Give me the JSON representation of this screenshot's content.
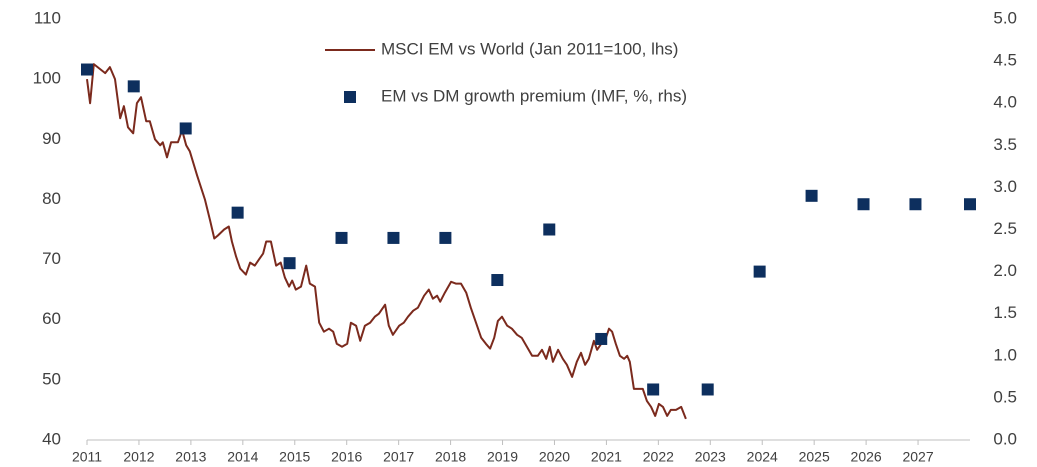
{
  "chart_data": {
    "type": "combo",
    "xlim": [
      2011,
      2028
    ],
    "xticks": [
      2011,
      2012,
      2013,
      2014,
      2015,
      2016,
      2017,
      2018,
      2019,
      2020,
      2021,
      2022,
      2023,
      2024,
      2025,
      2026,
      2027
    ],
    "ylim": [
      40,
      110
    ],
    "yticks": [
      40,
      50,
      60,
      70,
      80,
      90,
      100,
      110
    ],
    "y2lim": [
      0,
      5
    ],
    "y2ticks": [
      {
        "value": 0,
        "label": "0.0"
      },
      0.5,
      {
        "value": 1,
        "label": "1.0"
      },
      1.5,
      {
        "value": 2,
        "label": "2.0"
      },
      2.5,
      {
        "value": 3,
        "label": "3.0"
      },
      3.5,
      {
        "value": 4,
        "label": "4.0"
      },
      4.5,
      {
        "value": 5,
        "label": "5.0"
      }
    ],
    "series": [
      {
        "name": "MSCI EM vs World (Jan 2011=100, lhs)",
        "type": "line",
        "color": "#7b2a1d",
        "x": [
          2011.0,
          2011.06,
          2011.13,
          2011.35,
          2011.44,
          2011.54,
          2011.64,
          2011.71,
          2011.79,
          2011.89,
          2011.96,
          2012.04,
          2012.14,
          2012.21,
          2012.31,
          2012.41,
          2012.46,
          2012.54,
          2012.62,
          2012.75,
          2012.83,
          2012.91,
          2012.98,
          2013.12,
          2013.27,
          2013.37,
          2013.45,
          2013.52,
          2013.64,
          2013.73,
          2013.79,
          2013.87,
          2013.95,
          2014.06,
          2014.14,
          2014.23,
          2014.31,
          2014.39,
          2014.45,
          2014.54,
          2014.64,
          2014.73,
          2014.81,
          2014.89,
          2014.95,
          2015.02,
          2015.12,
          2015.22,
          2015.29,
          2015.39,
          2015.47,
          2015.56,
          2015.66,
          2015.74,
          2015.81,
          2015.91,
          2016.01,
          2016.08,
          2016.18,
          2016.26,
          2016.35,
          2016.45,
          2016.54,
          2016.62,
          2016.74,
          2016.81,
          2016.89,
          2017.01,
          2017.1,
          2017.18,
          2017.28,
          2017.37,
          2017.49,
          2017.58,
          2017.66,
          2017.74,
          2017.8,
          2017.89,
          2018.01,
          2018.1,
          2018.2,
          2018.3,
          2018.39,
          2018.49,
          2018.59,
          2018.68,
          2018.76,
          2018.84,
          2018.91,
          2018.99,
          2019.09,
          2019.18,
          2019.28,
          2019.37,
          2019.47,
          2019.57,
          2019.68,
          2019.76,
          2019.84,
          2019.91,
          2019.97,
          2020.07,
          2020.16,
          2020.24,
          2020.34,
          2020.43,
          2020.51,
          2020.59,
          2020.66,
          2020.76,
          2020.82,
          2020.9,
          2020.97,
          2021.05,
          2021.11,
          2021.18,
          2021.26,
          2021.34,
          2021.4,
          2021.45,
          2021.53,
          2021.61,
          2021.7,
          2021.78,
          2021.86,
          2021.94,
          2022.01,
          2022.09,
          2022.17,
          2022.24,
          2022.34,
          2022.44,
          2022.53
        ],
        "values": [
          100,
          96,
          102.5,
          101,
          102,
          100,
          93.5,
          95.5,
          92,
          91,
          96,
          97,
          93,
          93,
          90,
          89,
          89.5,
          87,
          89.5,
          89.5,
          91.5,
          89,
          88,
          84,
          80,
          76.5,
          73.5,
          74,
          75,
          75.5,
          73,
          70.5,
          68.5,
          67.5,
          69.5,
          69,
          70,
          71,
          73,
          73,
          69,
          69.5,
          67,
          65.5,
          66.5,
          65,
          65.5,
          69,
          66,
          65.5,
          59.5,
          58,
          58.5,
          58,
          56,
          55.5,
          56,
          59.5,
          59,
          56.5,
          59,
          59.5,
          60.5,
          61,
          62.5,
          59,
          57.5,
          59,
          59.5,
          60.5,
          61.5,
          62,
          64,
          65,
          63.5,
          64,
          63,
          64.5,
          66.3,
          66,
          66,
          64.5,
          62,
          59.5,
          57,
          56,
          55.2,
          57,
          59.8,
          60.5,
          59,
          58.5,
          57.5,
          57,
          55.5,
          54,
          54,
          55,
          53.5,
          55.5,
          53,
          55,
          53.5,
          52.5,
          50.5,
          53,
          54.5,
          52.5,
          53.5,
          56.5,
          55,
          56,
          56.5,
          58.5,
          58,
          56,
          54,
          53.5,
          54,
          53,
          48.5,
          48.5,
          48.5,
          46.5,
          45.5,
          44,
          46,
          45.5,
          44,
          45,
          45,
          45.5,
          43.5
        ]
      },
      {
        "name": "EM vs DM growth premium (IMF, %, rhs)",
        "type": "scatter",
        "axis": "y2",
        "color": "#0d2f5e",
        "x": [
          2011.0,
          2011.9,
          2012.9,
          2013.9,
          2014.9,
          2015.9,
          2016.9,
          2017.9,
          2018.9,
          2019.9,
          2020.9,
          2021.9,
          2022.95,
          2023.95,
          2024.95,
          2025.95,
          2026.95,
          2028.0
        ],
        "values": [
          4.4,
          4.2,
          3.7,
          2.7,
          2.1,
          2.4,
          2.4,
          2.4,
          1.9,
          2.5,
          1.2,
          0.6,
          0.6,
          2.0,
          2.9,
          2.8,
          2.8,
          2.8
        ]
      }
    ]
  }
}
